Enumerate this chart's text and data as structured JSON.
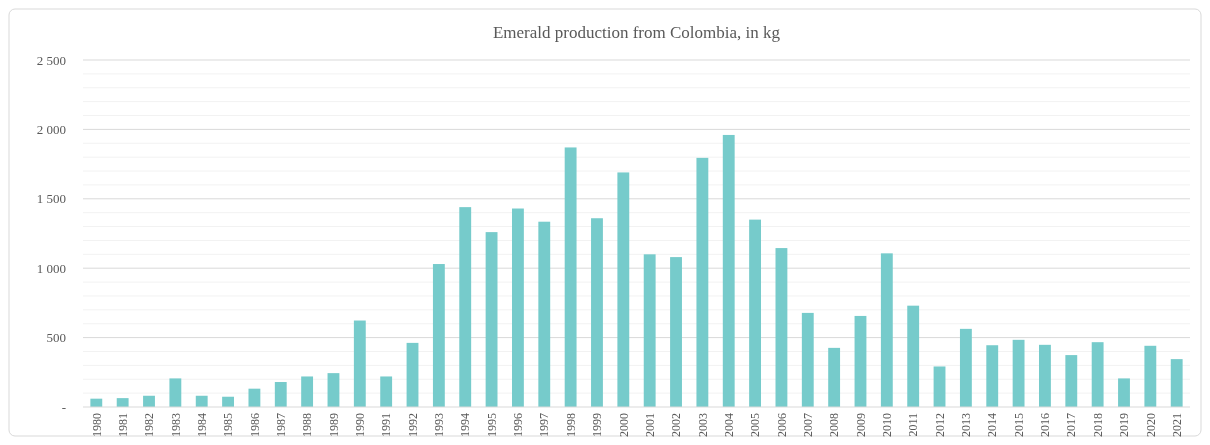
{
  "chart_data": {
    "type": "bar",
    "title": "Emerald production from Colombia, in kg",
    "categories": [
      "1980",
      "1981",
      "1982",
      "1983",
      "1984",
      "1985",
      "1986",
      "1987",
      "1988",
      "1989",
      "1990",
      "1991",
      "1992",
      "1993",
      "1994",
      "1995",
      "1996",
      "1997",
      "1998",
      "1999",
      "2000",
      "2001",
      "2002",
      "2003",
      "2004",
      "2005",
      "2006",
      "2007",
      "2008",
      "2009",
      "2010",
      "2011",
      "2012",
      "2013",
      "2014",
      "2015",
      "2016",
      "2017",
      "2018",
      "2019",
      "2020",
      "2021"
    ],
    "values": [
      60,
      64,
      81,
      206,
      81,
      74,
      132,
      180,
      220,
      244,
      623,
      220,
      462,
      1030,
      1440,
      1260,
      1430,
      1335,
      1870,
      1360,
      1690,
      1100,
      1080,
      1795,
      1960,
      1350,
      1145,
      678,
      426,
      656,
      1107,
      730,
      292,
      563,
      445,
      484,
      448,
      374,
      467,
      206,
      441,
      345
    ],
    "color": "#76cbcb",
    "ylim": [
      0,
      2500
    ],
    "yticks": [
      {
        "value": 0,
        "label": "-"
      },
      {
        "value": 100,
        "label": null
      },
      {
        "value": 200,
        "label": null
      },
      {
        "value": 300,
        "label": null
      },
      {
        "value": 400,
        "label": null
      },
      500,
      {
        "value": 600,
        "label": null
      },
      {
        "value": 700,
        "label": null
      },
      {
        "value": 800,
        "label": null
      },
      {
        "value": 900,
        "label": null
      },
      {
        "value": 1000,
        "label": "1 000"
      },
      {
        "value": 1100,
        "label": null
      },
      {
        "value": 1200,
        "label": null
      },
      {
        "value": 1300,
        "label": null
      },
      {
        "value": 1400,
        "label": null
      },
      {
        "value": 1500,
        "label": "1 500"
      },
      {
        "value": 1600,
        "label": null
      },
      {
        "value": 1700,
        "label": null
      },
      {
        "value": 1800,
        "label": null
      },
      {
        "value": 1900,
        "label": null
      },
      {
        "value": 2000,
        "label": "2 000"
      },
      {
        "value": 2100,
        "label": null
      },
      {
        "value": 2200,
        "label": null
      },
      {
        "value": 2300,
        "label": null
      },
      {
        "value": 2400,
        "label": null
      },
      {
        "value": 2500,
        "label": "2 500"
      }
    ],
    "grid": "y"
  }
}
